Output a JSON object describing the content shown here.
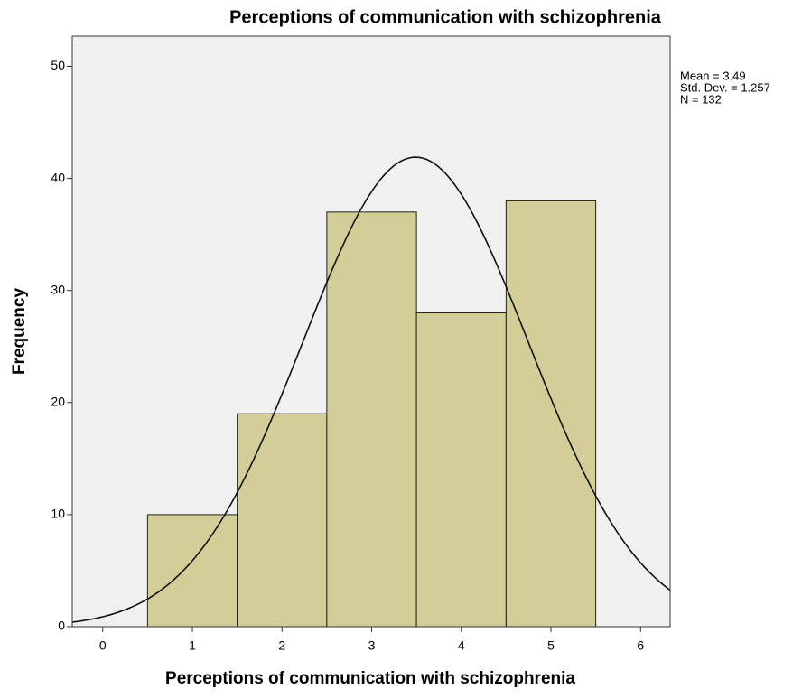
{
  "chart_data": {
    "type": "histogram",
    "title": "Perceptions of communication with schizophrenia",
    "x_label": "Perceptions of communication with schizophrenia",
    "y_label": "Frequency",
    "bins": [
      0.5,
      1.5,
      2.5,
      3.5,
      4.5,
      5.5
    ],
    "counts": [
      10,
      19,
      37,
      28,
      38
    ],
    "color": "#d3ce98",
    "xlim": [
      -0.34,
      6.33
    ],
    "ylim": [
      0,
      52.7
    ],
    "xticks": [
      0,
      1,
      2,
      3,
      4,
      5,
      6
    ],
    "yticks": [
      0,
      10,
      20,
      30,
      40,
      50
    ],
    "stats": {
      "mean": 3.49,
      "std_dev": 1.257,
      "n": 132,
      "labels": [
        "Mean = 3.49",
        "Std. Dev. = 1.257",
        "N = 132"
      ]
    }
  }
}
